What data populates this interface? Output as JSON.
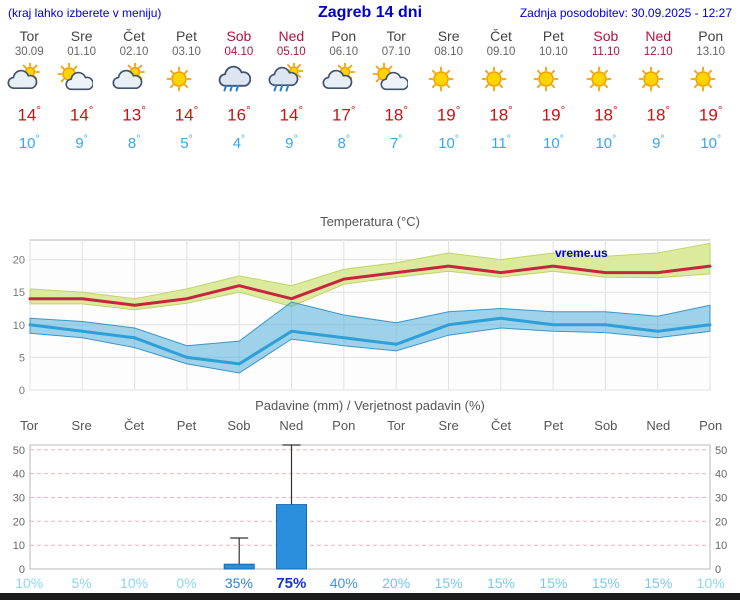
{
  "header": {
    "hint": "(kraj lahko izberete v meniju)",
    "title": "Zagreb 14 dni",
    "updated": "Zadnja posodobitev: 30.09.2025 - 12:27"
  },
  "colors": {
    "accent_blue": "#0000cc",
    "temp_high": "#cc1111",
    "temp_low": "#35a7f0",
    "weekend": "#b01243"
  },
  "days": [
    {
      "name": "Tor",
      "date": "30.09",
      "weekend": false,
      "icon": "cloud-sun",
      "tmax": 14,
      "tmin": 10
    },
    {
      "name": "Sre",
      "date": "01.10",
      "weekend": false,
      "icon": "sun-cloud",
      "tmax": 14,
      "tmin": 9
    },
    {
      "name": "Čet",
      "date": "02.10",
      "weekend": false,
      "icon": "cloud-sun",
      "tmax": 13,
      "tmin": 8
    },
    {
      "name": "Pet",
      "date": "03.10",
      "weekend": false,
      "icon": "sunny",
      "tmax": 14,
      "tmin": 5
    },
    {
      "name": "Sob",
      "date": "04.10",
      "weekend": true,
      "icon": "rain",
      "tmax": 16,
      "tmin": 4
    },
    {
      "name": "Ned",
      "date": "05.10",
      "weekend": true,
      "icon": "rain-sun",
      "tmax": 14,
      "tmin": 9
    },
    {
      "name": "Pon",
      "date": "06.10",
      "weekend": false,
      "icon": "cloud-sun",
      "tmax": 17,
      "tmin": 8
    },
    {
      "name": "Tor",
      "date": "07.10",
      "weekend": false,
      "icon": "sun-cloud",
      "tmax": 18,
      "tmin": 7
    },
    {
      "name": "Sre",
      "date": "08.10",
      "weekend": false,
      "icon": "sunny",
      "tmax": 19,
      "tmin": 10
    },
    {
      "name": "Čet",
      "date": "09.10",
      "weekend": false,
      "icon": "sunny",
      "tmax": 18,
      "tmin": 11
    },
    {
      "name": "Pet",
      "date": "10.10",
      "weekend": false,
      "icon": "sunny",
      "tmax": 19,
      "tmin": 10
    },
    {
      "name": "Sob",
      "date": "11.10",
      "weekend": true,
      "icon": "sunny",
      "tmax": 18,
      "tmin": 10
    },
    {
      "name": "Ned",
      "date": "12.10",
      "weekend": true,
      "icon": "sunny",
      "tmax": 18,
      "tmin": 9
    },
    {
      "name": "Pon",
      "date": "13.10",
      "weekend": false,
      "icon": "sunny",
      "tmax": 19,
      "tmin": 10
    }
  ],
  "chart_data": [
    {
      "type": "line",
      "title": "Temperatura (°C)",
      "watermark": "vreme.us",
      "categories": [
        "Tor",
        "Sre",
        "Čet",
        "Pet",
        "Sob",
        "Ned",
        "Pon",
        "Tor",
        "Sre",
        "Čet",
        "Pet",
        "Sob",
        "Ned",
        "Pon"
      ],
      "ylim": [
        0,
        23
      ],
      "yticks": [
        0,
        5,
        10,
        15,
        20
      ],
      "legend": "off",
      "grid": "on",
      "series": [
        {
          "key": "max",
          "name": "Max temperatura",
          "color": "#c9243f",
          "values": [
            14,
            14,
            13,
            14,
            16,
            14,
            17,
            18,
            19,
            18,
            19,
            18,
            18,
            19
          ]
        },
        {
          "key": "min",
          "name": "Min temperatura",
          "color": "#2f9fd8",
          "values": [
            10,
            9,
            8,
            5,
            4,
            9,
            8,
            7,
            10,
            11,
            10,
            10,
            9,
            10
          ]
        }
      ],
      "bands": [
        {
          "name": "max-range",
          "color": "#dcea9e",
          "edge": "#c2d36b",
          "upper": [
            15.5,
            15,
            14,
            15.5,
            17.5,
            16,
            18.5,
            19.5,
            21,
            20,
            21,
            20.5,
            21,
            22.5
          ],
          "lower": [
            13.2,
            13.2,
            12.3,
            13.3,
            15,
            12.8,
            16.2,
            17.3,
            18.2,
            17.3,
            18.2,
            17.3,
            17.2,
            17.8
          ]
        },
        {
          "name": "min-range",
          "color": "rgba(80,175,220,0.55)",
          "edge": "rgba(45,140,195,0.9)",
          "upper": [
            11,
            10.5,
            9.5,
            6.8,
            7.5,
            13.5,
            11.5,
            10.3,
            12,
            12.5,
            12,
            12,
            11.3,
            13
          ],
          "lower": [
            8.7,
            8,
            6.5,
            4,
            2.6,
            7.8,
            6.8,
            6,
            8.4,
            9.5,
            9,
            8.8,
            8,
            9
          ]
        }
      ]
    },
    {
      "type": "bar",
      "title": "Padavine (mm) / Verjetnost padavin (%)",
      "categories": [
        "Tor",
        "Sre",
        "Čet",
        "Pet",
        "Sob",
        "Ned",
        "Pon",
        "Tor",
        "Sre",
        "Čet",
        "Pet",
        "Sob",
        "Ned",
        "Pon"
      ],
      "ylim": [
        0,
        52
      ],
      "yticks": [
        0,
        10,
        20,
        30,
        40,
        50
      ],
      "grid": "dashed",
      "bar_color": "#2b8fe0",
      "values": [
        0,
        0,
        0,
        0,
        2,
        27,
        0,
        0,
        0,
        0,
        0,
        0,
        0,
        0
      ],
      "whisker_max": [
        0,
        0,
        0,
        0,
        13,
        52,
        0,
        0,
        0,
        0,
        0,
        0,
        0,
        0
      ],
      "probabilities": [
        {
          "label": "10%",
          "color": "#8bd6f2",
          "bold": false
        },
        {
          "label": "5%",
          "color": "#8bd6f2",
          "bold": false
        },
        {
          "label": "10%",
          "color": "#8bd6f2",
          "bold": false
        },
        {
          "label": "0%",
          "color": "#8bd6f2",
          "bold": false
        },
        {
          "label": "35%",
          "color": "#2f7fd6",
          "bold": false
        },
        {
          "label": "75%",
          "color": "#1437c8",
          "bold": true
        },
        {
          "label": "40%",
          "color": "#3f93e0",
          "bold": false
        },
        {
          "label": "20%",
          "color": "#6ec3ec",
          "bold": false
        },
        {
          "label": "15%",
          "color": "#79c9ef",
          "bold": false
        },
        {
          "label": "15%",
          "color": "#79c9ef",
          "bold": false
        },
        {
          "label": "15%",
          "color": "#79c9ef",
          "bold": false
        },
        {
          "label": "15%",
          "color": "#79c9ef",
          "bold": false
        },
        {
          "label": "15%",
          "color": "#79c9ef",
          "bold": false
        },
        {
          "label": "10%",
          "color": "#8bd6f2",
          "bold": false
        }
      ]
    }
  ]
}
